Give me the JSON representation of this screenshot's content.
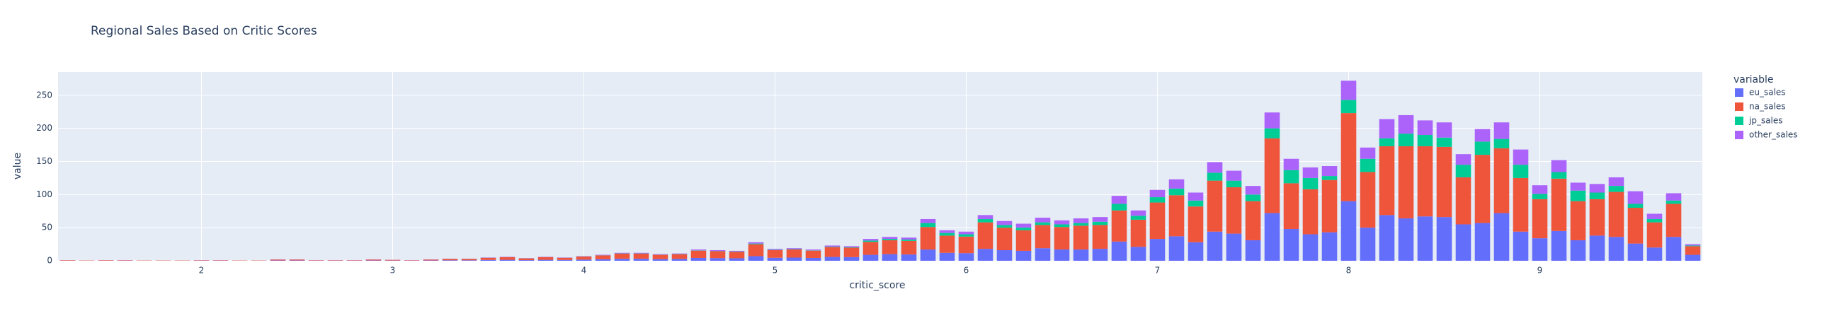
{
  "chart_data": {
    "type": "bar",
    "barmode": "stack",
    "title": "Regional Sales Based on Critic Scores",
    "x_label": "critic_score",
    "y_label": "value",
    "legend_title": "variable",
    "x": [
      1.3,
      1.4,
      1.5,
      1.6,
      1.7,
      1.8,
      1.9,
      2.0,
      2.1,
      2.2,
      2.3,
      2.4,
      2.5,
      2.6,
      2.7,
      2.8,
      2.9,
      3.0,
      3.1,
      3.2,
      3.3,
      3.4,
      3.5,
      3.6,
      3.7,
      3.8,
      3.9,
      4.0,
      4.1,
      4.2,
      4.3,
      4.4,
      4.5,
      4.6,
      4.7,
      4.8,
      4.9,
      5.0,
      5.1,
      5.2,
      5.3,
      5.4,
      5.5,
      5.6,
      5.7,
      5.8,
      5.9,
      6.0,
      6.1,
      6.2,
      6.3,
      6.4,
      6.5,
      6.6,
      6.7,
      6.8,
      6.9,
      7.0,
      7.1,
      7.2,
      7.3,
      7.4,
      7.5,
      7.6,
      7.7,
      7.8,
      7.9,
      8.0,
      8.1,
      8.2,
      8.3,
      8.4,
      8.5,
      8.6,
      8.7,
      8.8,
      8.9,
      9.0,
      9.1,
      9.2,
      9.3,
      9.4,
      9.5,
      9.6,
      9.7,
      9.8
    ],
    "series": [
      {
        "name": "eu_sales",
        "color": "#636efa",
        "values": [
          0.2,
          0.1,
          0.2,
          0.3,
          0.1,
          0.1,
          0.1,
          0.3,
          0.3,
          0.1,
          0.1,
          0.5,
          0.5,
          0.3,
          0.3,
          0.3,
          0.5,
          0.4,
          0.3,
          0.5,
          0.8,
          0.8,
          1.3,
          1.5,
          1,
          1.5,
          1.3,
          1.8,
          2.3,
          3,
          3,
          2.5,
          2.8,
          4.3,
          4,
          3.8,
          7,
          4.5,
          4.8,
          4.3,
          5.8,
          5.5,
          9,
          10,
          9.5,
          17,
          12,
          11.5,
          18,
          16,
          15,
          19,
          17,
          17,
          18,
          29,
          21,
          33,
          37,
          28,
          44,
          41,
          31,
          72,
          48,
          40,
          43,
          90,
          50,
          69,
          64,
          67,
          66,
          55,
          57,
          72,
          44,
          34,
          45,
          31,
          38,
          36,
          26,
          20,
          36,
          9
        ]
      },
      {
        "name": "na_sales",
        "color": "#EF553B",
        "values": [
          0.7,
          0.4,
          0.7,
          0.6,
          0.4,
          0.4,
          0.4,
          0.6,
          0.6,
          0.4,
          0.4,
          1.3,
          1.3,
          0.6,
          0.6,
          0.6,
          1.3,
          1,
          0.6,
          1.3,
          1.9,
          1.9,
          3.2,
          3.9,
          2.6,
          3.9,
          3.2,
          4.5,
          5.8,
          7.8,
          7.8,
          6.5,
          7.1,
          11,
          10.4,
          9.7,
          18,
          11.7,
          12.3,
          11,
          14.9,
          14.3,
          19.5,
          21,
          20.5,
          34,
          26,
          25,
          40,
          34,
          31,
          35,
          34,
          36,
          36,
          47,
          41,
          55,
          62,
          54,
          77,
          70,
          59,
          113,
          69,
          68,
          79,
          133,
          84,
          104,
          109,
          106,
          106,
          71,
          103,
          98,
          81,
          59,
          79,
          59,
          55,
          68,
          54,
          38,
          50,
          13
        ]
      },
      {
        "name": "jp_sales",
        "color": "#00cc96",
        "values": [
          0,
          0,
          0,
          0,
          0,
          0,
          0,
          0,
          0,
          0,
          0,
          0,
          0,
          0,
          0,
          0,
          0,
          0,
          0,
          0,
          0.1,
          0.1,
          0.1,
          0.1,
          0.1,
          0.1,
          0.1,
          0.2,
          0.2,
          0.3,
          0.3,
          0.2,
          0.3,
          0.4,
          0.4,
          0.4,
          1,
          0.5,
          0.5,
          0.4,
          0.6,
          0.6,
          2,
          2,
          2,
          6,
          4,
          3.5,
          5,
          4,
          4,
          4,
          4,
          4,
          5,
          10,
          6,
          8,
          10,
          9,
          12,
          10,
          10,
          15,
          20,
          17,
          6,
          20,
          20,
          12,
          19,
          17,
          14,
          19,
          20,
          14,
          20,
          8,
          10,
          16,
          10,
          9,
          6,
          5,
          5,
          1
        ]
      },
      {
        "name": "other_sales",
        "color": "#ab63fa",
        "values": [
          0.1,
          0,
          0.1,
          0.1,
          0,
          0,
          0,
          0.1,
          0.1,
          0,
          0,
          0.2,
          0.2,
          0.1,
          0.1,
          0.1,
          0.2,
          0.1,
          0.1,
          0.2,
          0.2,
          0.2,
          0.4,
          0.5,
          0.3,
          0.5,
          0.4,
          0.5,
          0.7,
          0.9,
          0.9,
          0.8,
          0.8,
          1.3,
          1.2,
          1.1,
          2,
          1.3,
          1.4,
          1.3,
          1.7,
          1.6,
          2.5,
          3,
          3,
          6,
          4,
          4,
          6,
          6,
          6,
          7,
          6,
          7,
          7,
          12,
          8,
          11,
          14,
          12,
          16,
          15,
          13,
          24,
          17,
          16,
          15,
          29,
          17,
          29,
          28,
          22,
          23,
          16,
          19,
          25,
          23,
          13,
          18,
          12,
          13,
          13,
          19,
          8,
          11,
          2
        ]
      }
    ],
    "xlim": [
      1.25,
      9.85
    ],
    "xticks": [
      2,
      3,
      4,
      5,
      6,
      7,
      8,
      9
    ],
    "ylim": [
      0,
      285
    ],
    "yticks": [
      0,
      50,
      100,
      150,
      200,
      250
    ],
    "grid": true
  }
}
